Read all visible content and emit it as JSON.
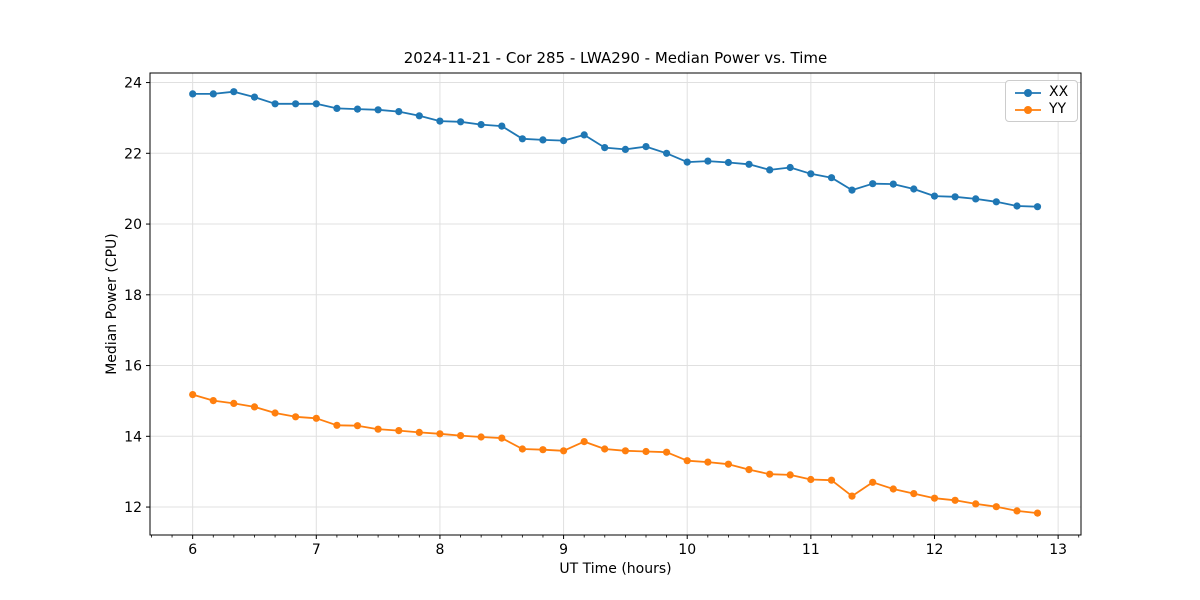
{
  "chart_data": {
    "type": "line",
    "title": "2024-11-21 - Cor 285 - LWA290 - Median Power vs. Time",
    "xlabel": "UT Time (hours)",
    "ylabel": "Median Power (CPU)",
    "xlim": [
      5.655,
      13.185
    ],
    "ylim": [
      11.21,
      24.27
    ],
    "xticks": [
      6,
      7,
      8,
      9,
      10,
      11,
      12,
      13
    ],
    "yticks": [
      12,
      14,
      16,
      18,
      20,
      22,
      24
    ],
    "x_minor_divisions": 6,
    "grid": true,
    "legend_position": "upper right",
    "colors": {
      "grid": "#e0e0e0",
      "axis": "#000000"
    },
    "x": [
      6.0,
      6.167,
      6.333,
      6.5,
      6.667,
      6.833,
      7.0,
      7.167,
      7.333,
      7.5,
      7.667,
      7.833,
      8.0,
      8.167,
      8.333,
      8.5,
      8.667,
      8.833,
      9.0,
      9.167,
      9.333,
      9.5,
      9.667,
      9.833,
      10.0,
      10.167,
      10.333,
      10.5,
      10.667,
      10.833,
      11.0,
      11.167,
      11.333,
      11.5,
      11.667,
      11.833,
      12.0,
      12.167,
      12.333,
      12.5,
      12.667,
      12.833
    ],
    "series": [
      {
        "name": "XX",
        "color": "#1f77b4",
        "values": [
          23.68,
          23.68,
          23.74,
          23.59,
          23.4,
          23.4,
          23.4,
          23.27,
          23.25,
          23.23,
          23.18,
          23.06,
          22.91,
          22.89,
          22.81,
          22.77,
          22.41,
          22.38,
          22.36,
          22.52,
          22.16,
          22.11,
          22.19,
          22.0,
          21.75,
          21.78,
          21.74,
          21.69,
          21.53,
          21.6,
          21.42,
          21.31,
          20.96,
          21.14,
          21.13,
          20.99,
          20.79,
          20.77,
          20.71,
          20.63,
          20.51,
          20.49
        ]
      },
      {
        "name": "YY",
        "color": "#ff7f0e",
        "values": [
          15.18,
          15.01,
          14.93,
          14.83,
          14.66,
          14.55,
          14.51,
          14.31,
          14.3,
          14.2,
          14.16,
          14.11,
          14.07,
          14.02,
          13.98,
          13.95,
          13.64,
          13.62,
          13.59,
          13.85,
          13.64,
          13.59,
          13.57,
          13.55,
          13.31,
          13.27,
          13.21,
          13.06,
          12.93,
          12.91,
          12.78,
          12.76,
          12.31,
          12.7,
          12.51,
          12.38,
          12.25,
          12.19,
          12.09,
          12.01,
          11.89,
          11.83
        ]
      }
    ]
  }
}
